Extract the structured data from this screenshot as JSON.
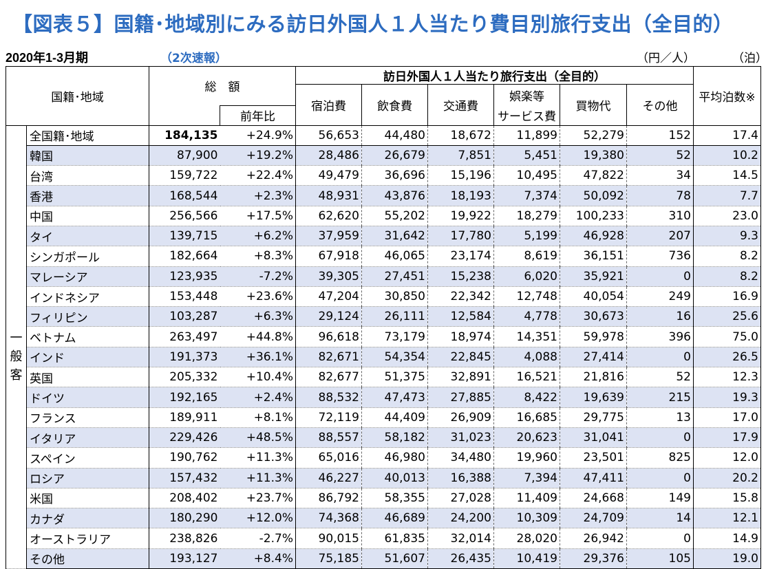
{
  "title": "【図表５】国籍･地域別にみる訪日外国人１人当たり費目別旅行支出（全目的）",
  "period": "2020年1-3月期",
  "edition": "（2次速報）",
  "unit_yen": "（円／人）",
  "unit_nights": "（泊）",
  "headers": {
    "nationality": "国籍･地域",
    "total": "総　額",
    "yoy": "前年比",
    "group": "訪日外国人１人当たり旅行支出（全目的）",
    "accommodation": "宿泊費",
    "food": "飲食費",
    "transport": "交通費",
    "entertainment_1": "娯楽等",
    "entertainment_2": "サービス費",
    "shopping": "買物代",
    "other": "その他",
    "nights": "平均泊数※"
  },
  "side_label": [
    "一",
    "般",
    "客"
  ],
  "overall": {
    "name": "全国籍･地域",
    "total": "184,135",
    "yoy": "+24.9%",
    "acc": "56,653",
    "food": "44,480",
    "trans": "18,672",
    "ent": "11,899",
    "shop": "52,279",
    "other": "152",
    "nights": "17.4"
  },
  "rows": [
    {
      "name": "韓国",
      "total": "87,900",
      "yoy": "+19.2%",
      "acc": "28,486",
      "food": "26,679",
      "trans": "7,851",
      "ent": "5,451",
      "shop": "19,380",
      "other": "52",
      "nights": "10.2"
    },
    {
      "name": "台湾",
      "total": "159,722",
      "yoy": "+22.4%",
      "acc": "49,479",
      "food": "36,696",
      "trans": "15,196",
      "ent": "10,495",
      "shop": "47,822",
      "other": "34",
      "nights": "14.5"
    },
    {
      "name": "香港",
      "total": "168,544",
      "yoy": "+2.3%",
      "acc": "48,931",
      "food": "43,876",
      "trans": "18,193",
      "ent": "7,374",
      "shop": "50,092",
      "other": "78",
      "nights": "7.7"
    },
    {
      "name": "中国",
      "total": "256,566",
      "yoy": "+17.5%",
      "acc": "62,620",
      "food": "55,202",
      "trans": "19,922",
      "ent": "18,279",
      "shop": "100,233",
      "other": "310",
      "nights": "23.0"
    },
    {
      "name": "タイ",
      "total": "139,715",
      "yoy": "+6.2%",
      "acc": "37,959",
      "food": "31,642",
      "trans": "17,780",
      "ent": "5,199",
      "shop": "46,928",
      "other": "207",
      "nights": "9.3"
    },
    {
      "name": "シンガポール",
      "total": "182,664",
      "yoy": "+8.3%",
      "acc": "67,918",
      "food": "46,065",
      "trans": "23,174",
      "ent": "8,619",
      "shop": "36,151",
      "other": "736",
      "nights": "8.2"
    },
    {
      "name": "マレーシア",
      "total": "123,935",
      "yoy": "-7.2%",
      "acc": "39,305",
      "food": "27,451",
      "trans": "15,238",
      "ent": "6,020",
      "shop": "35,921",
      "other": "0",
      "nights": "8.2"
    },
    {
      "name": "インドネシア",
      "total": "153,448",
      "yoy": "+23.6%",
      "acc": "47,204",
      "food": "30,850",
      "trans": "22,342",
      "ent": "12,748",
      "shop": "40,054",
      "other": "249",
      "nights": "16.9"
    },
    {
      "name": "フィリピン",
      "total": "103,287",
      "yoy": "+6.3%",
      "acc": "29,124",
      "food": "26,111",
      "trans": "12,584",
      "ent": "4,778",
      "shop": "30,673",
      "other": "16",
      "nights": "25.6"
    },
    {
      "name": "ベトナム",
      "total": "263,497",
      "yoy": "+44.8%",
      "acc": "96,618",
      "food": "73,179",
      "trans": "18,974",
      "ent": "14,351",
      "shop": "59,978",
      "other": "396",
      "nights": "75.0"
    },
    {
      "name": "インド",
      "total": "191,373",
      "yoy": "+36.1%",
      "acc": "82,671",
      "food": "54,354",
      "trans": "22,845",
      "ent": "4,088",
      "shop": "27,414",
      "other": "0",
      "nights": "26.5"
    },
    {
      "name": "英国",
      "total": "205,332",
      "yoy": "+10.4%",
      "acc": "82,677",
      "food": "51,375",
      "trans": "32,891",
      "ent": "16,521",
      "shop": "21,816",
      "other": "52",
      "nights": "12.3"
    },
    {
      "name": "ドイツ",
      "total": "192,165",
      "yoy": "+2.4%",
      "acc": "88,532",
      "food": "47,473",
      "trans": "27,885",
      "ent": "8,422",
      "shop": "19,639",
      "other": "215",
      "nights": "19.3"
    },
    {
      "name": "フランス",
      "total": "189,911",
      "yoy": "+8.1%",
      "acc": "72,119",
      "food": "44,409",
      "trans": "26,909",
      "ent": "16,685",
      "shop": "29,775",
      "other": "13",
      "nights": "17.0"
    },
    {
      "name": "イタリア",
      "total": "229,426",
      "yoy": "+48.5%",
      "acc": "88,557",
      "food": "58,182",
      "trans": "31,023",
      "ent": "20,623",
      "shop": "31,041",
      "other": "0",
      "nights": "17.9"
    },
    {
      "name": "スペイン",
      "total": "190,762",
      "yoy": "+11.3%",
      "acc": "65,016",
      "food": "46,980",
      "trans": "34,480",
      "ent": "19,960",
      "shop": "23,501",
      "other": "825",
      "nights": "12.0"
    },
    {
      "name": "ロシア",
      "total": "157,432",
      "yoy": "+11.3%",
      "acc": "46,227",
      "food": "40,013",
      "trans": "16,388",
      "ent": "7,394",
      "shop": "47,411",
      "other": "0",
      "nights": "20.2"
    },
    {
      "name": "米国",
      "total": "208,402",
      "yoy": "+23.7%",
      "acc": "86,792",
      "food": "58,355",
      "trans": "27,028",
      "ent": "11,409",
      "shop": "24,668",
      "other": "149",
      "nights": "15.8"
    },
    {
      "name": "カナダ",
      "total": "180,290",
      "yoy": "+12.0%",
      "acc": "74,368",
      "food": "46,689",
      "trans": "24,200",
      "ent": "10,309",
      "shop": "24,709",
      "other": "14",
      "nights": "12.1"
    },
    {
      "name": "オーストラリア",
      "total": "238,826",
      "yoy": "-2.7%",
      "acc": "90,015",
      "food": "61,835",
      "trans": "32,014",
      "ent": "28,020",
      "shop": "26,942",
      "other": "0",
      "nights": "14.9"
    },
    {
      "name": "その他",
      "total": "193,127",
      "yoy": "+8.4%",
      "acc": "75,185",
      "food": "51,607",
      "trans": "26,435",
      "ent": "10,419",
      "shop": "29,376",
      "other": "105",
      "nights": "19.0"
    }
  ]
}
